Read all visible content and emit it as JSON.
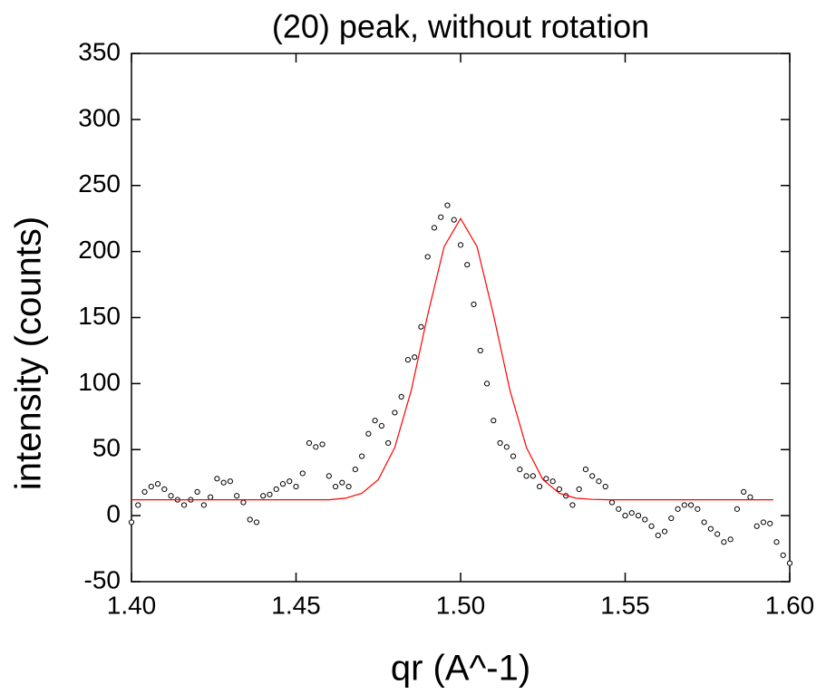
{
  "chart_data": {
    "type": "scatter",
    "title": "(20) peak, without rotation",
    "xlabel": "qr (A^-1)",
    "ylabel": "intensity (counts)",
    "xlim": [
      1.4,
      1.6
    ],
    "ylim": [
      -50,
      350
    ],
    "xticks": [
      {
        "value": 1.4,
        "label": "1.40"
      },
      {
        "value": 1.45,
        "label": "1.45"
      },
      {
        "value": 1.5,
        "label": "1.50"
      },
      {
        "value": 1.55,
        "label": "1.55"
      },
      {
        "value": 1.6,
        "label": "1.60"
      }
    ],
    "yticks": [
      -50,
      0,
      50,
      100,
      150,
      200,
      250,
      300,
      350
    ],
    "series": [
      {
        "type": "scatter",
        "color": "#000000",
        "x": [
          1.4,
          1.402,
          1.404,
          1.406,
          1.408,
          1.41,
          1.412,
          1.414,
          1.416,
          1.418,
          1.42,
          1.422,
          1.424,
          1.426,
          1.428,
          1.43,
          1.432,
          1.434,
          1.436,
          1.438,
          1.44,
          1.442,
          1.444,
          1.446,
          1.448,
          1.45,
          1.452,
          1.454,
          1.456,
          1.458,
          1.46,
          1.462,
          1.464,
          1.466,
          1.468,
          1.47,
          1.472,
          1.474,
          1.476,
          1.478,
          1.48,
          1.482,
          1.484,
          1.486,
          1.488,
          1.49,
          1.492,
          1.494,
          1.496,
          1.498,
          1.5,
          1.502,
          1.504,
          1.506,
          1.508,
          1.51,
          1.512,
          1.514,
          1.516,
          1.518,
          1.52,
          1.522,
          1.524,
          1.526,
          1.528,
          1.53,
          1.532,
          1.534,
          1.536,
          1.538,
          1.54,
          1.542,
          1.544,
          1.546,
          1.548,
          1.55,
          1.552,
          1.554,
          1.556,
          1.558,
          1.56,
          1.562,
          1.564,
          1.566,
          1.568,
          1.57,
          1.572,
          1.574,
          1.576,
          1.578,
          1.58,
          1.582,
          1.584,
          1.586,
          1.588,
          1.59,
          1.592,
          1.594,
          1.596,
          1.598,
          1.6
        ],
        "values": [
          -5,
          8,
          18,
          22,
          24,
          20,
          15,
          12,
          8,
          12,
          18,
          8,
          14,
          28,
          25,
          26,
          15,
          10,
          -3,
          -5,
          15,
          16,
          20,
          24,
          26,
          22,
          32,
          55,
          52,
          54,
          30,
          22,
          25,
          22,
          35,
          45,
          62,
          72,
          68,
          55,
          78,
          90,
          118,
          120,
          143,
          196,
          218,
          226,
          235,
          224,
          205,
          190,
          160,
          125,
          100,
          72,
          55,
          52,
          45,
          35,
          30,
          30,
          22,
          28,
          26,
          20,
          15,
          8,
          20,
          35,
          30,
          26,
          22,
          10,
          5,
          0,
          2,
          0,
          -3,
          -8,
          -15,
          -12,
          -2,
          5,
          8,
          8,
          5,
          -5,
          -10,
          -14,
          -20,
          -18,
          5,
          18,
          14,
          -8,
          -5,
          -6,
          -20,
          -30,
          -36
        ]
      },
      {
        "type": "line",
        "color": "#ff0000",
        "x": [
          1.4,
          1.405,
          1.41,
          1.415,
          1.42,
          1.425,
          1.43,
          1.435,
          1.44,
          1.445,
          1.45,
          1.455,
          1.46,
          1.465,
          1.47,
          1.475,
          1.48,
          1.485,
          1.49,
          1.495,
          1.5,
          1.505,
          1.51,
          1.515,
          1.52,
          1.525,
          1.53,
          1.535,
          1.54,
          1.545,
          1.55,
          1.555,
          1.56,
          1.565,
          1.57,
          1.575,
          1.58,
          1.585,
          1.59,
          1.595
        ],
        "values": [
          12,
          12,
          12,
          12,
          12,
          12,
          12,
          12,
          12,
          12,
          12,
          12,
          12,
          13.2,
          16.9,
          27.3,
          51.6,
          94.8,
          152,
          203.7,
          225,
          203.7,
          152,
          94.8,
          51.6,
          27.3,
          16.9,
          13.2,
          12.3,
          12,
          12,
          12,
          12,
          12,
          12,
          12,
          12,
          12,
          12,
          12
        ]
      }
    ]
  }
}
